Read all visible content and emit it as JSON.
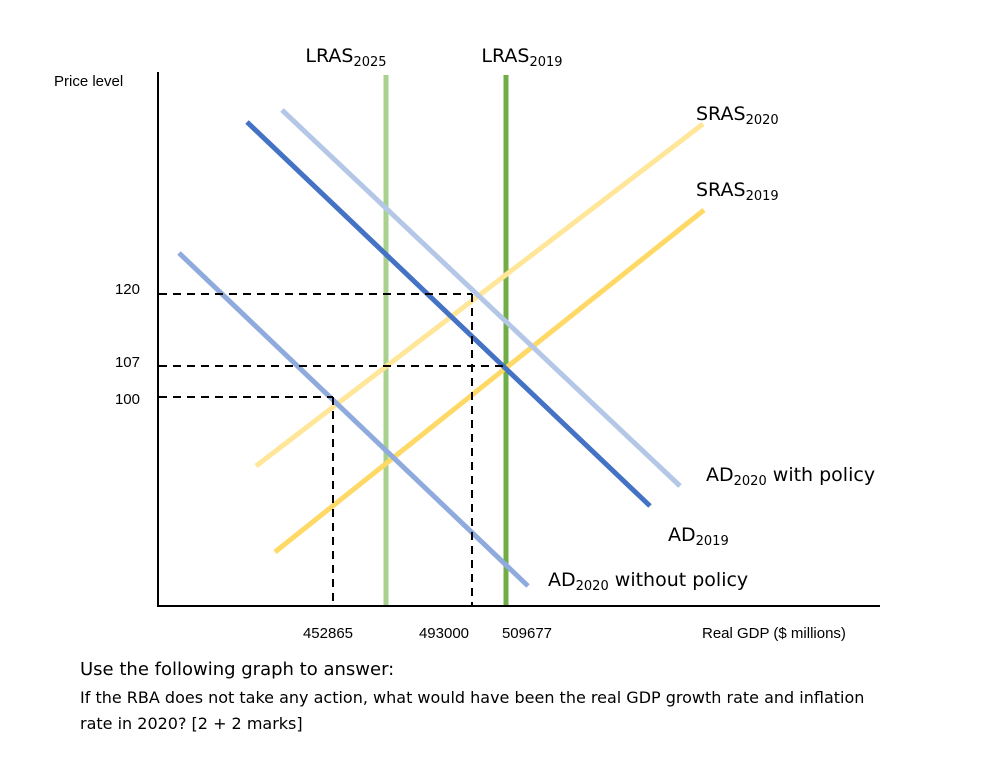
{
  "diagram": {
    "y_axis_label": "Price level",
    "x_axis_label": "Real GDP ($ millions)",
    "y_ticks": [
      120,
      107,
      100
    ],
    "x_ticks": [
      452865,
      493000,
      509677
    ],
    "curves": [
      {
        "main": "LRAS",
        "sub": "2025"
      },
      {
        "main": "LRAS",
        "sub": "2019"
      },
      {
        "main": "SRAS",
        "sub": "2020"
      },
      {
        "main": "SRAS",
        "sub": "2019"
      },
      {
        "main": "AD",
        "sub": "2020",
        "suffix": " with policy"
      },
      {
        "main": "AD",
        "sub": "2019"
      },
      {
        "main": "AD",
        "sub": "2020",
        "suffix": " without policy"
      }
    ]
  },
  "question": {
    "intro": "Use the following graph to answer:",
    "lines": [
      "If the RBA does not take any action, what would have been the real GDP growth rate and inflation",
      "rate in 2020? [2 + 2 marks]"
    ]
  }
}
